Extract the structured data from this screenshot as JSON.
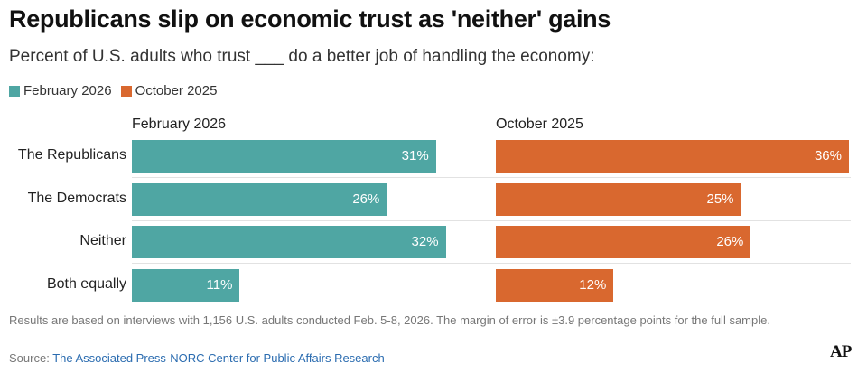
{
  "title": "Republicans slip on economic trust as 'neither' gains",
  "subtitle": "Percent of U.S. adults who trust ___ do a better job of handling the economy:",
  "legend": [
    {
      "label": "February 2026",
      "color": "#4fa6a3"
    },
    {
      "label": "October 2025",
      "color": "#d9682f"
    }
  ],
  "chart_data": {
    "type": "bar",
    "title": "Republicans slip on economic trust as 'neither' gains",
    "categories": [
      "The Republicans",
      "The Democrats",
      "Neither",
      "Both equally"
    ],
    "series": [
      {
        "name": "February 2026",
        "color": "#4fa6a3",
        "values": [
          31,
          26,
          32,
          11
        ],
        "labels": [
          "31%",
          "26%",
          "32%",
          "11%"
        ]
      },
      {
        "name": "October 2025",
        "color": "#d9682f",
        "values": [
          36,
          25,
          26,
          12
        ],
        "labels": [
          "36%",
          "25%",
          "26%",
          "12%"
        ]
      }
    ],
    "xlim": [
      0,
      36
    ],
    "orientation": "horizontal",
    "layout": "small-multiples"
  },
  "note": "Results are based on interviews with 1,156 U.S. adults conducted Feb. 5-8, 2026. The margin of error is ±3.9 percentage points for the full sample.",
  "source": {
    "prefix": "Source: ",
    "name": "The Associated Press-NORC Center for Public Affairs Research"
  },
  "logo": "AP"
}
